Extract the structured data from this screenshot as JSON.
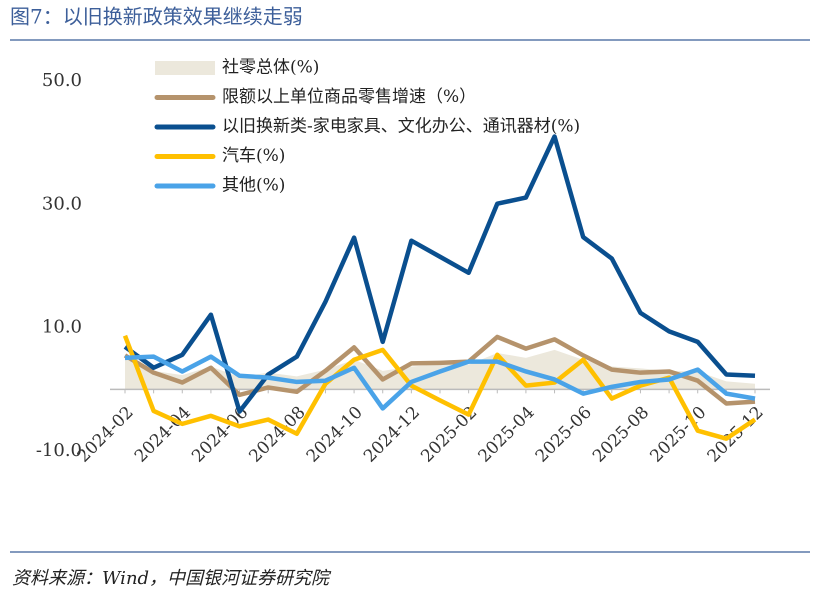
{
  "chart_data": {
    "type": "line",
    "title": "图7：以旧换新政策效果继续走弱",
    "source": "资料来源：Wind，中国银河证券研究院",
    "categories": [
      "2024-02",
      null,
      "2024-04",
      null,
      "2024-06",
      null,
      "2024-08",
      null,
      "2024-10",
      null,
      "2024-12",
      null,
      "2025-02",
      null,
      "2025-04",
      null,
      "2025-06",
      null,
      "2025-08",
      null,
      "2025-10",
      null,
      "2025-12"
    ],
    "ylim": [
      -10,
      50
    ],
    "yticks": [
      {
        "value": -10,
        "label": "-10.0"
      },
      {
        "value": 10,
        "label": "10.0"
      },
      {
        "value": 30,
        "label": "30.0"
      },
      {
        "value": 50,
        "label": "50.0"
      }
    ],
    "grid": false,
    "legend": "top-left",
    "series": [
      {
        "name": "社零总体(%)",
        "style": "area",
        "color": "#ece8dc",
        "values": [
          5.5,
          3.0,
          2.3,
          3.7,
          2.0,
          2.7,
          2.1,
          3.2,
          4.8,
          3.0,
          3.7,
          4.0,
          4.0,
          5.9,
          5.1,
          6.4,
          4.8,
          3.7,
          3.4,
          3.0,
          2.9,
          1.3,
          0.9
        ]
      },
      {
        "name": "限额以上单位商品零售增速（%）",
        "style": "line",
        "color": "#b5936c",
        "values": [
          5.5,
          2.7,
          1.1,
          3.5,
          -0.9,
          0.3,
          -0.4,
          3.0,
          6.8,
          1.6,
          4.2,
          4.3,
          4.5,
          8.5,
          6.6,
          8.1,
          5.5,
          3.2,
          2.7,
          2.9,
          1.4,
          -2.3,
          -2.0
        ]
      },
      {
        "name": "以旧换新类-家电家具、文化办公、通讯器材(%)",
        "style": "line",
        "color": "#0a4f8f",
        "values": [
          6.9,
          3.5,
          5.6,
          12.1,
          -3.6,
          2.4,
          5.3,
          14.2,
          24.6,
          7.7,
          24.1,
          21.5,
          18.9,
          30.1,
          31.1,
          41.0,
          24.7,
          21.2,
          12.4,
          9.4,
          7.7,
          2.4,
          2.2
        ]
      },
      {
        "name": "汽车(%)",
        "style": "line",
        "color": "#ffc000",
        "values": [
          8.7,
          -3.5,
          -5.6,
          -4.3,
          -6.0,
          -4.9,
          -7.2,
          0.9,
          4.8,
          6.4,
          0.6,
          -1.8,
          -4.1,
          5.6,
          0.6,
          1.1,
          4.8,
          -1.5,
          0.6,
          1.9,
          -6.7,
          -8.0,
          -4.9
        ]
      },
      {
        "name": "其他(%)",
        "style": "line",
        "color": "#4aa3e8",
        "values": [
          5.1,
          5.3,
          2.9,
          5.3,
          2.2,
          1.9,
          1.2,
          1.4,
          3.5,
          -3.1,
          1.2,
          2.9,
          4.5,
          4.5,
          2.9,
          1.6,
          -0.7,
          0.4,
          1.2,
          1.6,
          3.2,
          -0.7,
          -1.5
        ]
      }
    ]
  }
}
